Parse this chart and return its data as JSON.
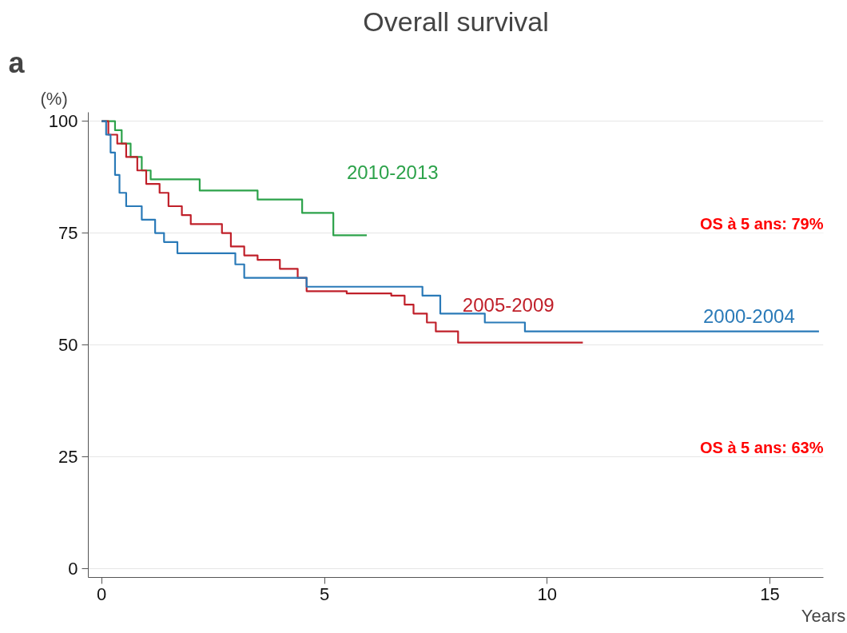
{
  "chart_data": {
    "type": "step",
    "title": "Overall survival",
    "xlabel": "Years",
    "ylabel": "(%)",
    "xlim": [
      -0.3,
      16.2
    ],
    "ylim": [
      -2,
      102
    ],
    "xticks": [
      0,
      5,
      10,
      15
    ],
    "yticks": [
      0,
      25,
      50,
      75,
      100
    ],
    "grid": "y",
    "line_style": "solid",
    "marker": "none",
    "annotations": [
      "a",
      "OS à 5 ans: 79%",
      "OS à 5 ans: 63%"
    ],
    "series": [
      {
        "name": "2010-2013",
        "color": "#2ca24a",
        "x": [
          0,
          0.3,
          0.45,
          0.65,
          0.9,
          1.1,
          2.2,
          3.5,
          4.5,
          5.2,
          5.95
        ],
        "values": [
          100,
          98,
          95,
          92,
          89,
          87,
          84.5,
          82.5,
          79.5,
          74.5,
          74.5
        ]
      },
      {
        "name": "2005-2009",
        "color": "#c0202a",
        "x": [
          0,
          0.15,
          0.35,
          0.55,
          0.8,
          1.0,
          1.3,
          1.5,
          1.8,
          2.0,
          2.7,
          2.9,
          3.2,
          3.5,
          4.0,
          4.4,
          4.6,
          5.5,
          6.5,
          6.8,
          7.0,
          7.3,
          7.5,
          8.0,
          10.8
        ],
        "values": [
          100,
          97,
          95,
          92,
          89,
          86,
          84,
          81,
          79,
          77,
          75,
          72,
          70,
          69,
          67,
          65,
          62,
          61.5,
          61,
          59,
          57,
          55,
          53,
          50.5,
          50.5
        ]
      },
      {
        "name": "2000-2004",
        "color": "#2a7ab8",
        "x": [
          0,
          0.1,
          0.2,
          0.3,
          0.4,
          0.55,
          0.9,
          1.2,
          1.4,
          1.7,
          3.0,
          3.2,
          4.6,
          7.2,
          7.6,
          8.6,
          9.5,
          16.1
        ],
        "values": [
          100,
          97,
          93,
          88,
          84,
          81,
          78,
          75,
          73,
          70.5,
          68,
          65,
          63,
          61,
          57,
          55,
          53,
          53
        ]
      }
    ]
  }
}
